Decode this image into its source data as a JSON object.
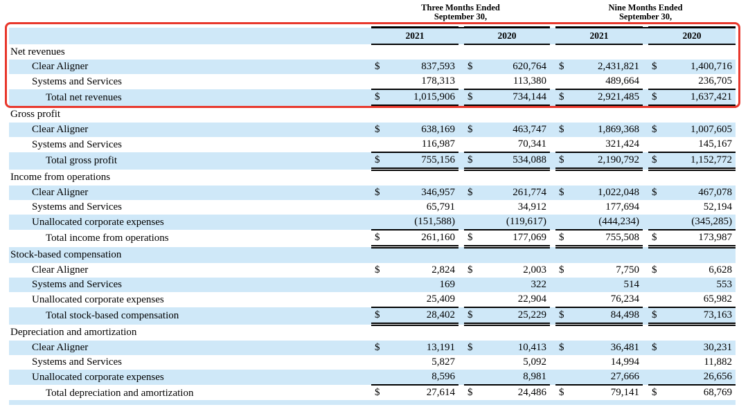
{
  "table": {
    "currency_symbol": "$",
    "period_headers": [
      {
        "line1": "Three Months Ended",
        "line2": "September 30,"
      },
      {
        "line1": "Nine Months Ended",
        "line2": "September 30,"
      }
    ],
    "year_headers": [
      "2021",
      "2020",
      "2021",
      "2020"
    ],
    "sections": [
      {
        "header": "Net revenues",
        "rows": [
          {
            "label": "Clear Aligner",
            "indent": 1,
            "dollar": true,
            "underline": "",
            "values": [
              "837,593",
              "620,764",
              "2,431,821",
              "1,400,716"
            ]
          },
          {
            "label": "Systems and Services",
            "indent": 1,
            "dollar": false,
            "underline": "single",
            "values": [
              "178,313",
              "113,380",
              "489,664",
              "236,705"
            ]
          },
          {
            "label": "Total net revenues",
            "indent": 2,
            "dollar": true,
            "underline": "double",
            "values": [
              "1,015,906",
              "734,144",
              "2,921,485",
              "1,637,421"
            ]
          }
        ]
      },
      {
        "header": "Gross profit",
        "rows": [
          {
            "label": "Clear Aligner",
            "indent": 1,
            "dollar": true,
            "underline": "",
            "values": [
              "638,169",
              "463,747",
              "1,869,368",
              "1,007,605"
            ]
          },
          {
            "label": "Systems and Services",
            "indent": 1,
            "dollar": false,
            "underline": "single",
            "values": [
              "116,987",
              "70,341",
              "321,424",
              "145,167"
            ]
          },
          {
            "label": "Total gross profit",
            "indent": 2,
            "dollar": true,
            "underline": "double",
            "values": [
              "755,156",
              "534,088",
              "2,190,792",
              "1,152,772"
            ]
          }
        ]
      },
      {
        "header": "Income from operations",
        "rows": [
          {
            "label": "Clear Aligner",
            "indent": 1,
            "dollar": true,
            "underline": "",
            "values": [
              "346,957",
              "261,774",
              "1,022,048",
              "467,078"
            ]
          },
          {
            "label": "Systems and Services",
            "indent": 1,
            "dollar": false,
            "underline": "",
            "values": [
              "65,791",
              "34,912",
              "177,694",
              "52,194"
            ]
          },
          {
            "label": "Unallocated corporate expenses",
            "indent": 1,
            "dollar": false,
            "underline": "single",
            "values": [
              "(151,588)",
              "(119,617)",
              "(444,234)",
              "(345,285)"
            ]
          },
          {
            "label": "Total income from operations",
            "indent": 2,
            "dollar": true,
            "underline": "double",
            "values": [
              "261,160",
              "177,069",
              "755,508",
              "173,987"
            ]
          }
        ]
      },
      {
        "header": "Stock-based compensation",
        "rows": [
          {
            "label": "Clear Aligner",
            "indent": 1,
            "dollar": true,
            "underline": "",
            "values": [
              "2,824",
              "2,003",
              "7,750",
              "6,628"
            ]
          },
          {
            "label": "Systems and Services",
            "indent": 1,
            "dollar": false,
            "underline": "",
            "values": [
              "169",
              "322",
              "514",
              "553"
            ]
          },
          {
            "label": "Unallocated corporate expenses",
            "indent": 1,
            "dollar": false,
            "underline": "single",
            "values": [
              "25,409",
              "22,904",
              "76,234",
              "65,982"
            ]
          },
          {
            "label": "Total stock-based compensation",
            "indent": 2,
            "dollar": true,
            "underline": "double",
            "values": [
              "28,402",
              "25,229",
              "84,498",
              "73,163"
            ]
          }
        ]
      },
      {
        "header": "Depreciation and amortization",
        "rows": [
          {
            "label": "Clear Aligner",
            "indent": 1,
            "dollar": true,
            "underline": "",
            "values": [
              "13,191",
              "10,413",
              "36,481",
              "30,231"
            ]
          },
          {
            "label": "Systems and Services",
            "indent": 1,
            "dollar": false,
            "underline": "",
            "values": [
              "5,827",
              "5,092",
              "14,994",
              "11,882"
            ]
          },
          {
            "label": "Unallocated corporate expenses",
            "indent": 1,
            "dollar": false,
            "underline": "single",
            "values": [
              "8,596",
              "8,981",
              "27,666",
              "26,656"
            ]
          },
          {
            "label": "Total depreciation and amortization",
            "indent": 2,
            "dollar": true,
            "underline": "double",
            "values": [
              "27,614",
              "24,486",
              "79,141",
              "68,769"
            ]
          }
        ]
      }
    ]
  },
  "annotation": {
    "highlighted_section": "Net revenues",
    "highlight_color": "#e8372c"
  },
  "colors": {
    "row_stripe": "#cfe8f8"
  }
}
